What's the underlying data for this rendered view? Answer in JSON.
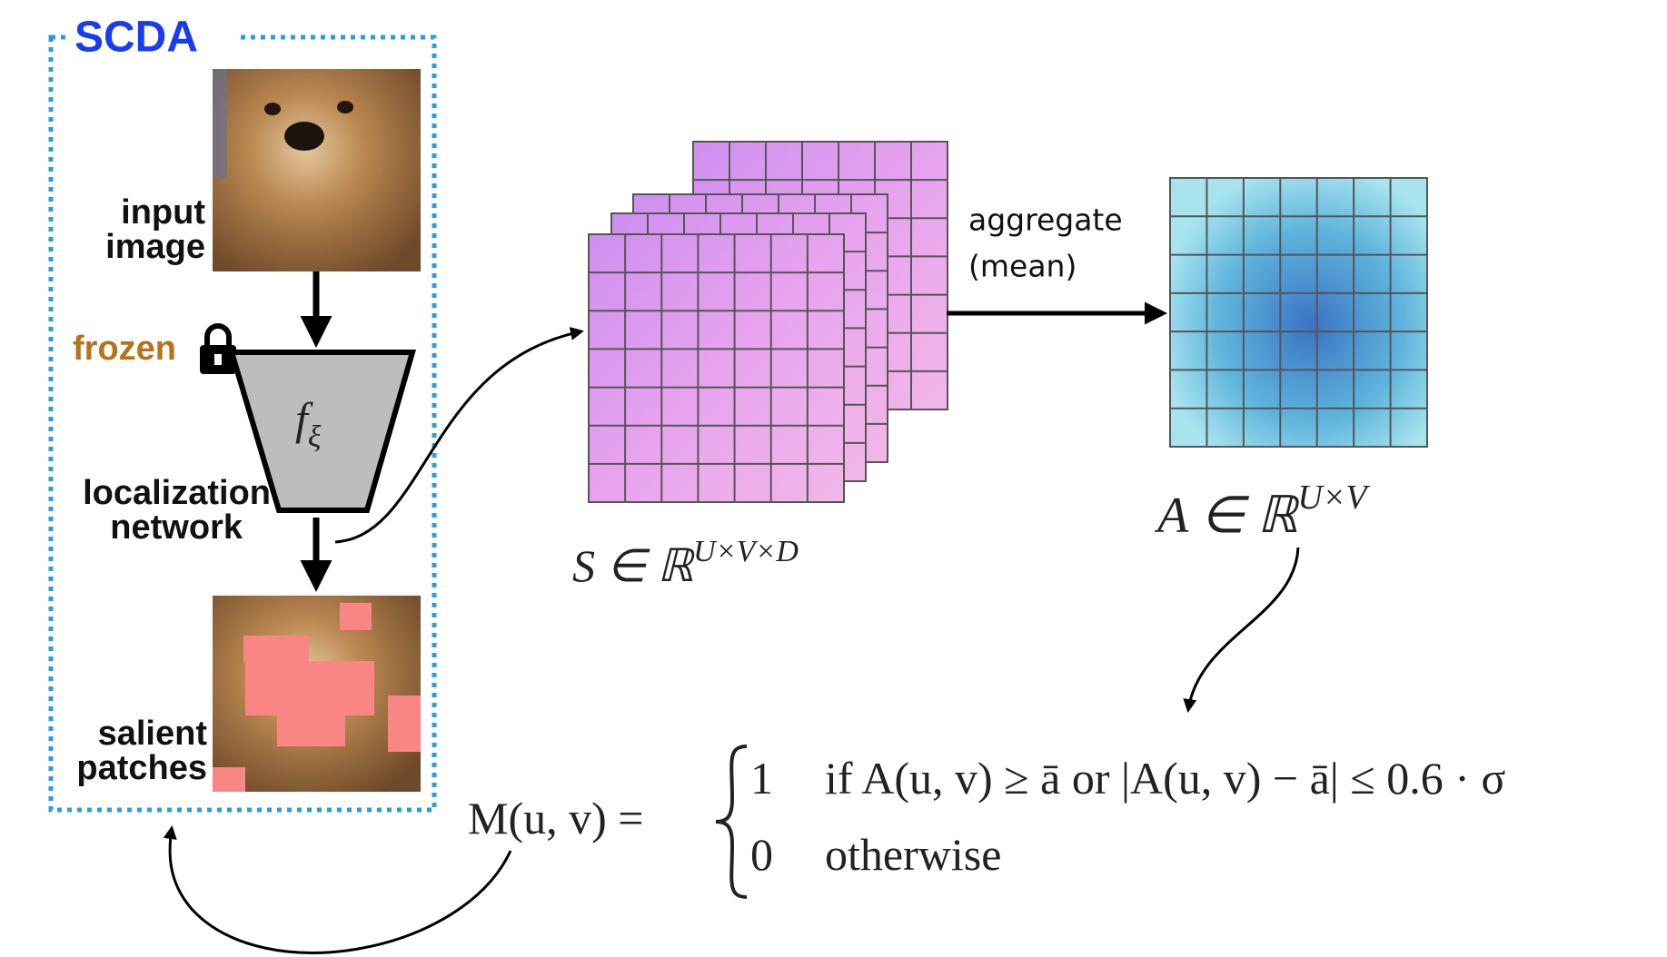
{
  "container": {
    "title": "SCDA"
  },
  "input": {
    "label_lines": [
      "input",
      "image"
    ]
  },
  "frozen": "frozen",
  "network": {
    "symbol": "f",
    "subscript": "ξ",
    "label_lines": [
      "localization",
      "network"
    ]
  },
  "output": {
    "label_lines": [
      "salient",
      "patches"
    ]
  },
  "aggregate": {
    "label_lines": [
      "aggregate",
      "(mean)"
    ]
  },
  "s_label": {
    "base": "S ∈ ℝ",
    "sup": "U×V×D"
  },
  "a_label": {
    "base": "A ∈ ℝ",
    "sup": "U×V"
  },
  "formula": {
    "lhs": "M(u, v) =",
    "case1_value": "1",
    "case1_condition": "if A(u, v) ≥ ā or |A(u, v) − ā| ≤ 0.6 · σ",
    "case2_value": "0",
    "case2_condition": "otherwise"
  }
}
